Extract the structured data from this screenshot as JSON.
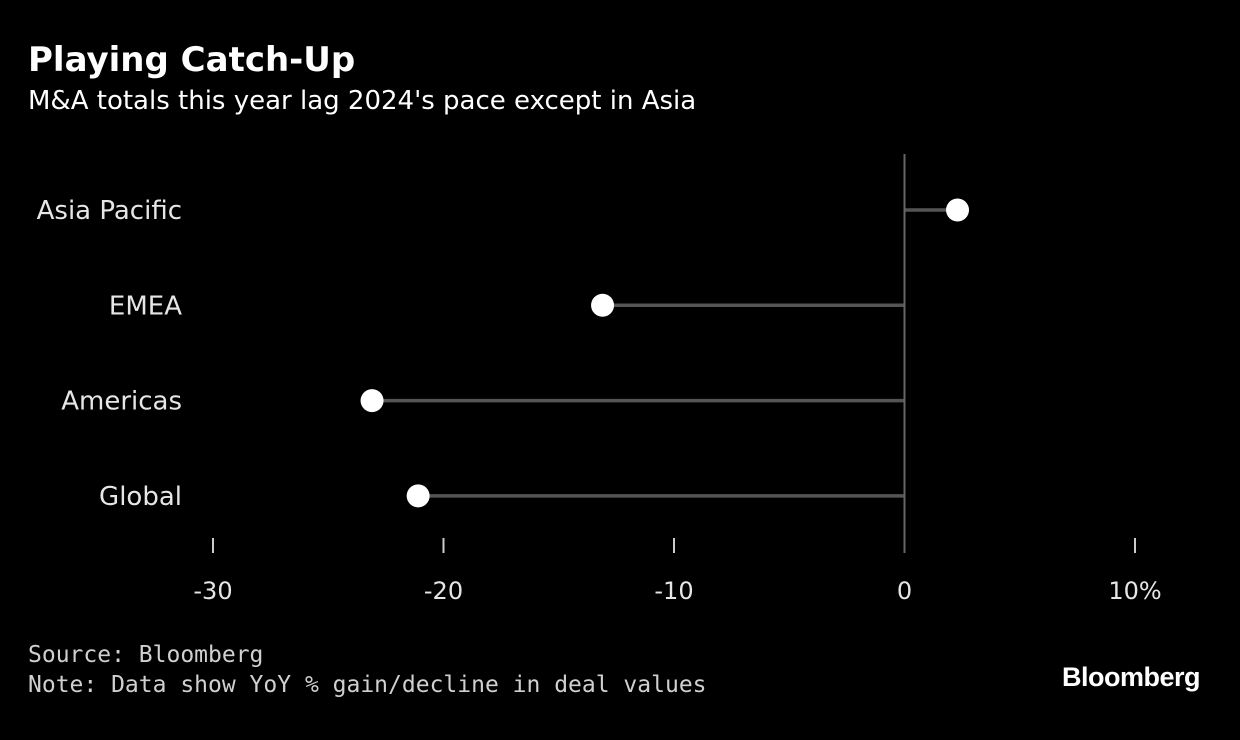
{
  "header": {
    "title": "Playing Catch-Up",
    "subtitle": "M&A totals this year lag 2024's pace except in Asia"
  },
  "chart_data": {
    "type": "lollipop",
    "orientation": "horizontal",
    "categories": [
      "Asia Pacific",
      "EMEA",
      "Americas",
      "Global"
    ],
    "values": [
      2.3,
      -13.1,
      -23.1,
      -21.1
    ],
    "units": "% YoY",
    "xlim": [
      -30,
      10
    ],
    "xticks": [
      -30,
      -20,
      -10,
      0,
      10
    ],
    "xtick_labels": [
      "-30",
      "-20",
      "-10",
      "0",
      "10%"
    ],
    "baseline": 0,
    "colors": {
      "dot": "#ffffff",
      "stem": "#555555",
      "baseline": "#666666",
      "tick": "#cccccc"
    }
  },
  "footer": {
    "source": "Source: Bloomberg",
    "note": "Note: Data show YoY % gain/decline in deal values",
    "logo": "Bloomberg"
  }
}
